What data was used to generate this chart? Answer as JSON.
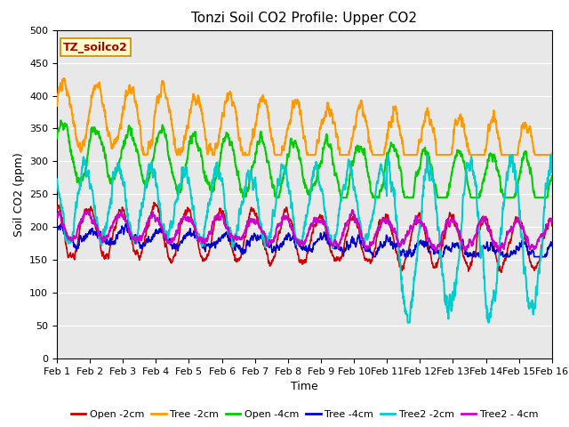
{
  "title": "Tonzi Soil CO2 Profile: Upper CO2",
  "ylabel": "Soil CO2 (ppm)",
  "xlabel": "Time",
  "dataset_label": "TZ_soilco2",
  "ylim": [
    0,
    500
  ],
  "yticks": [
    0,
    50,
    100,
    150,
    200,
    250,
    300,
    350,
    400,
    450,
    500
  ],
  "xtick_labels": [
    "Feb 1",
    "Feb 2",
    "Feb 3",
    "Feb 4",
    "Feb 5",
    "Feb 6",
    "Feb 7",
    "Feb 8",
    "Feb 9",
    "Feb 10",
    "Feb 11",
    "Feb 12",
    "Feb 13",
    "Feb 14",
    "Feb 15",
    "Feb 16"
  ],
  "bg_color": "#e8e8e8",
  "legend_entries": [
    "Open -2cm",
    "Tree -2cm",
    "Open -4cm",
    "Tree -4cm",
    "Tree2 -2cm",
    "Tree2 - 4cm"
  ],
  "line_colors": [
    "#cc0000",
    "#ff9900",
    "#00cc00",
    "#0000cc",
    "#00cccc",
    "#cc00cc"
  ],
  "line_widths": [
    1.2,
    1.5,
    1.5,
    1.2,
    1.5,
    1.5
  ],
  "title_fontsize": 11,
  "label_fontsize": 9,
  "tick_fontsize": 8,
  "legend_fontsize": 8,
  "figsize": [
    6.4,
    4.8
  ],
  "dpi": 100
}
